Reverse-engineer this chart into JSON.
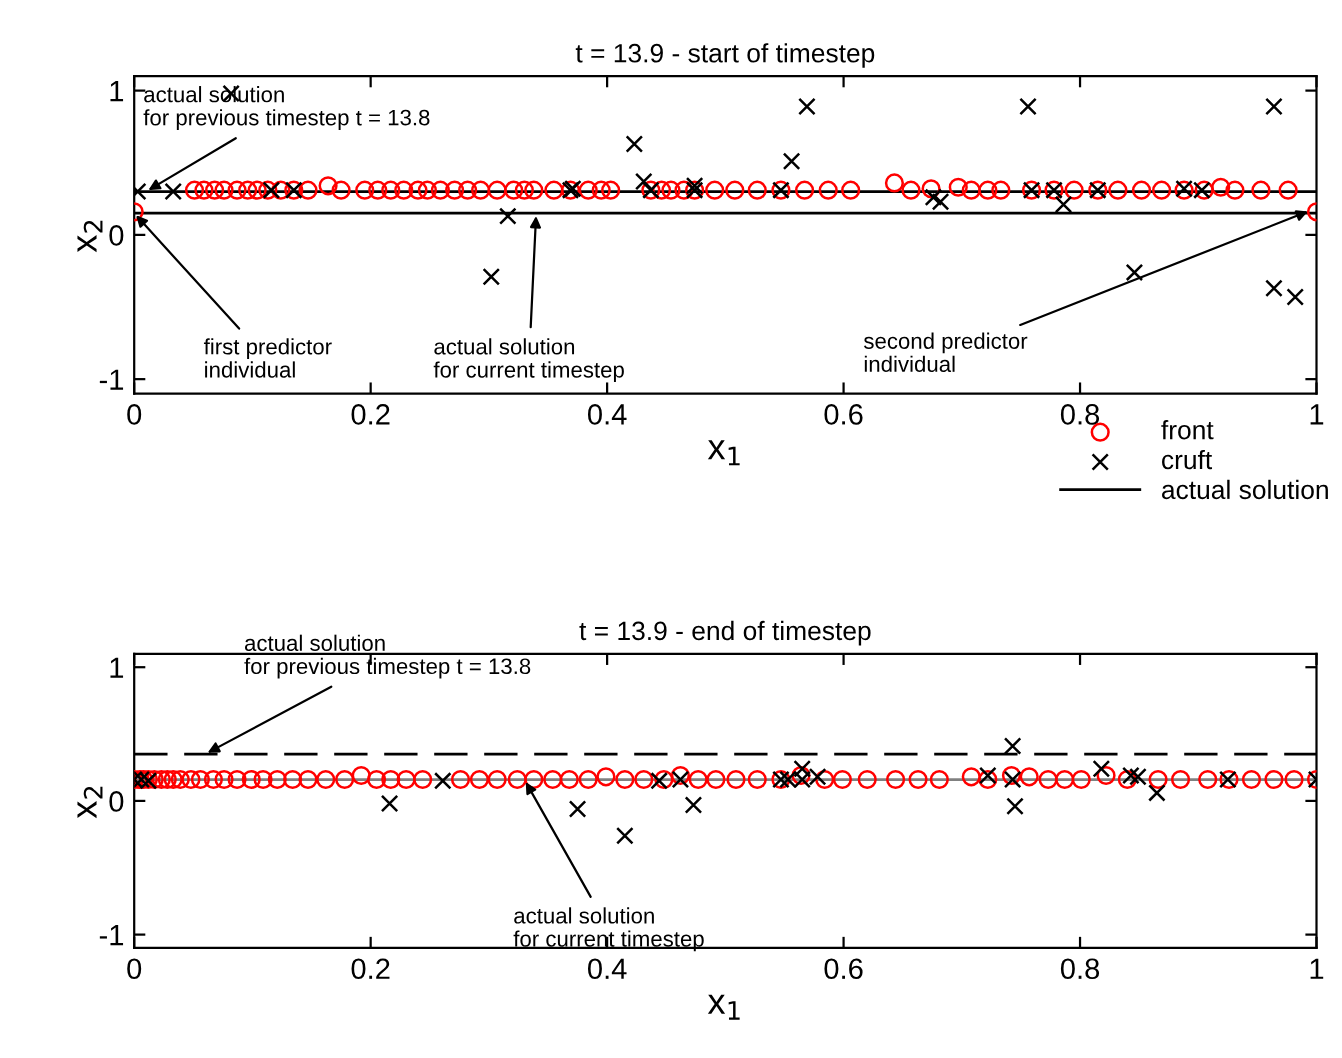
{
  "chart_data": [
    {
      "type": "scatter",
      "title": "t = 13.9 - start of timestep",
      "xlabel": "x$_{1}$",
      "ylabel": "x$_{2}$",
      "xlim": [
        0,
        1
      ],
      "ylim": [
        -1.1,
        1.1
      ],
      "xticks": [
        0,
        0.2,
        0.4,
        0.6,
        0.8,
        1
      ],
      "yticks": [
        -1,
        0,
        1
      ],
      "legend": "bottom right",
      "series": [
        {
          "name": "front",
          "color": "#ff0000",
          "marker": "circle",
          "x": [
            0,
            0.051,
            0.059,
            0.068,
            0.076,
            0.087,
            0.096,
            0.104,
            0.113,
            0.124,
            0.135,
            0.147,
            0.164,
            0.175,
            0.195,
            0.206,
            0.217,
            0.228,
            0.24,
            0.248,
            0.259,
            0.271,
            0.282,
            0.293,
            0.307,
            0.321,
            0.33,
            0.338,
            0.355,
            0.369,
            0.384,
            0.395,
            0.403,
            0.437,
            0.446,
            0.454,
            0.465,
            0.474,
            0.491,
            0.508,
            0.527,
            0.547,
            0.567,
            0.587,
            0.606,
            0.643,
            0.657,
            0.674,
            0.697,
            0.708,
            0.722,
            0.733,
            0.759,
            0.778,
            0.795,
            0.815,
            0.832,
            0.852,
            0.869,
            0.888,
            0.905,
            0.919,
            0.931,
            0.953,
            0.976,
            1.0
          ],
          "values": [
            0.16,
            0.31,
            0.31,
            0.31,
            0.31,
            0.31,
            0.31,
            0.31,
            0.31,
            0.31,
            0.31,
            0.31,
            0.34,
            0.31,
            0.31,
            0.31,
            0.31,
            0.31,
            0.31,
            0.31,
            0.31,
            0.31,
            0.31,
            0.31,
            0.31,
            0.31,
            0.31,
            0.31,
            0.31,
            0.31,
            0.31,
            0.31,
            0.31,
            0.31,
            0.31,
            0.31,
            0.31,
            0.31,
            0.31,
            0.31,
            0.31,
            0.31,
            0.31,
            0.31,
            0.31,
            0.36,
            0.31,
            0.32,
            0.33,
            0.31,
            0.31,
            0.31,
            0.31,
            0.31,
            0.31,
            0.31,
            0.31,
            0.31,
            0.31,
            0.31,
            0.31,
            0.33,
            0.31,
            0.31,
            0.31,
            0.16
          ]
        },
        {
          "name": "cruft",
          "color": "#000000",
          "marker": "cross",
          "x": [
            0.003,
            0.033,
            0.082,
            0.116,
            0.135,
            0.302,
            0.316,
            0.369,
            0.371,
            0.423,
            0.431,
            0.437,
            0.474,
            0.474,
            0.547,
            0.556,
            0.569,
            0.676,
            0.682,
            0.756,
            0.759,
            0.778,
            0.786,
            0.815,
            0.846,
            0.888,
            0.903,
            0.964,
            0.964,
            0.982
          ],
          "values": [
            0.3,
            0.3,
            0.98,
            0.31,
            0.31,
            -0.29,
            0.13,
            0.31,
            0.32,
            0.63,
            0.37,
            0.31,
            0.34,
            0.31,
            0.31,
            0.51,
            0.89,
            0.26,
            0.23,
            0.89,
            0.31,
            0.31,
            0.21,
            0.31,
            -0.26,
            0.32,
            0.31,
            0.89,
            -0.37,
            -0.43
          ]
        },
        {
          "name": "actual solution",
          "color": "#000000",
          "type": "line",
          "marker": "none",
          "line_style": "solid",
          "x": [
            0,
            1
          ],
          "values": [
            0.15,
            0.15
          ]
        }
      ],
      "ref_lines": [
        {
          "axis": "y",
          "value": 0.3,
          "color": "#000000",
          "line_style": "solid"
        }
      ],
      "annotations": [
        {
          "text": "actual solution\nfor previous timestep t = 13.8",
          "x": 0.01,
          "y": 0.3
        },
        {
          "text": "first predictor\nindividual",
          "x": 0.0,
          "y": 0.15
        },
        {
          "text": "actual solution\nfor current timestep",
          "x": 0.34,
          "y": 0.15
        },
        {
          "text": "second predictor\nindividual",
          "x": 0.995,
          "y": 0.17
        }
      ]
    },
    {
      "type": "scatter",
      "title": "t = 13.9 - end of timestep",
      "xlabel": "x$_{1}$",
      "ylabel": "x$_{2}$",
      "xlim": [
        0,
        1
      ],
      "ylim": [
        -1.1,
        1.1
      ],
      "xticks": [
        0,
        0.2,
        0.4,
        0.6,
        0.8,
        1
      ],
      "yticks": [
        -1,
        0,
        1
      ],
      "series": [
        {
          "color": "#ff0000",
          "marker": "circle",
          "x": [
            0,
            0.005,
            0.008,
            0.012,
            0.017,
            0.023,
            0.028,
            0.033,
            0.039,
            0.048,
            0.056,
            0.067,
            0.076,
            0.087,
            0.099,
            0.109,
            0.121,
            0.134,
            0.147,
            0.162,
            0.178,
            0.192,
            0.205,
            0.217,
            0.23,
            0.244,
            0.276,
            0.292,
            0.307,
            0.324,
            0.338,
            0.354,
            0.368,
            0.384,
            0.399,
            0.415,
            0.431,
            0.448,
            0.462,
            0.477,
            0.492,
            0.509,
            0.527,
            0.547,
            0.564,
            0.584,
            0.599,
            0.62,
            0.644,
            0.663,
            0.681,
            0.708,
            0.722,
            0.742,
            0.757,
            0.773,
            0.787,
            0.801,
            0.822,
            0.84,
            0.866,
            0.885,
            0.908,
            0.926,
            0.945,
            0.964,
            0.981,
            1.0
          ],
          "values": [
            0.16,
            0.16,
            0.16,
            0.16,
            0.16,
            0.16,
            0.16,
            0.16,
            0.16,
            0.16,
            0.16,
            0.16,
            0.16,
            0.16,
            0.16,
            0.16,
            0.16,
            0.16,
            0.16,
            0.16,
            0.16,
            0.19,
            0.16,
            0.16,
            0.16,
            0.16,
            0.16,
            0.16,
            0.16,
            0.16,
            0.16,
            0.16,
            0.16,
            0.16,
            0.18,
            0.16,
            0.16,
            0.16,
            0.19,
            0.16,
            0.16,
            0.16,
            0.16,
            0.16,
            0.19,
            0.16,
            0.16,
            0.16,
            0.16,
            0.16,
            0.16,
            0.18,
            0.16,
            0.19,
            0.18,
            0.16,
            0.16,
            0.16,
            0.19,
            0.16,
            0.16,
            0.16,
            0.16,
            0.16,
            0.16,
            0.16,
            0.16,
            0.16
          ]
        },
        {
          "color": "#000000",
          "marker": "cross",
          "x": [
            0,
            0.006,
            0.012,
            0.216,
            0.261,
            0.375,
            0.415,
            0.444,
            0.462,
            0.473,
            0.547,
            0.553,
            0.565,
            0.565,
            0.578,
            0.722,
            0.743,
            0.743,
            0.745,
            0.818,
            0.843,
            0.849,
            0.865,
            0.925,
            1.0
          ],
          "values": [
            0.16,
            0.16,
            0.15,
            -0.02,
            0.15,
            -0.06,
            -0.26,
            0.15,
            0.16,
            -0.03,
            0.16,
            0.16,
            0.24,
            0.16,
            0.18,
            0.19,
            0.41,
            0.16,
            -0.04,
            0.24,
            0.19,
            0.18,
            0.06,
            0.16,
            0.16
          ]
        },
        {
          "color": "#808080",
          "type": "line",
          "marker": "none",
          "line_style": "solid",
          "x": [
            0,
            1
          ],
          "values": [
            0.16,
            0.16
          ]
        }
      ],
      "ref_lines": [
        {
          "axis": "y",
          "value": 0.35,
          "color": "#000000",
          "line_style": "dashed"
        }
      ],
      "annotations": [
        {
          "text": "actual solution\nfor previous timestep t = 13.8",
          "x": 0.06,
          "y": 0.35
        },
        {
          "text": "actual solution\nfor current timestep",
          "x": 0.33,
          "y": 0.16
        }
      ]
    }
  ]
}
